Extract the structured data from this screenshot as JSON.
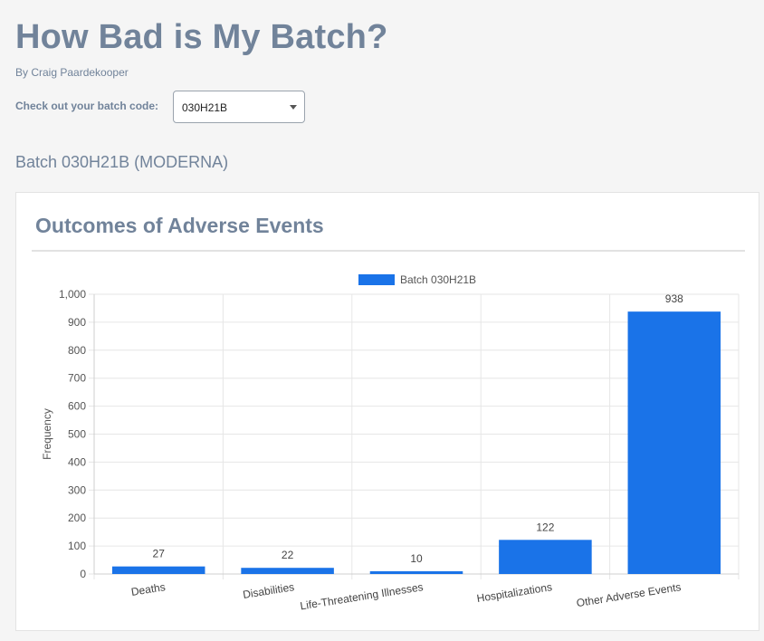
{
  "page": {
    "title": "How Bad is My Batch?",
    "byline": "By Craig Paardekooper",
    "batch_label": "Check out your batch code:",
    "batch_select": {
      "value": "030H21B"
    },
    "batch_heading": "Batch 030H21B (MODERNA)"
  },
  "card": {
    "title": "Outcomes of Adverse Events"
  },
  "chart_data": {
    "type": "bar",
    "title": "",
    "categories": [
      "Deaths",
      "Disabilities",
      "Life-Threatening Illnesses",
      "Hospitalizations",
      "Other Adverse Events"
    ],
    "series": [
      {
        "name": "Batch 030H21B",
        "values": [
          27,
          22,
          10,
          122,
          938
        ],
        "color": "#1a73e8"
      }
    ],
    "xlabel": "",
    "ylabel": "Frequency",
    "ylim": [
      0,
      1000
    ],
    "yticks": [
      0,
      100,
      200,
      300,
      400,
      500,
      600,
      700,
      800,
      900,
      1000
    ],
    "ytick_labels": [
      "0",
      "100",
      "200",
      "300",
      "400",
      "500",
      "600",
      "700",
      "800",
      "900",
      "1,000"
    ],
    "data_labels": true,
    "grid": true,
    "legend": "top-center"
  },
  "colors": {
    "text": "#71839a",
    "bar": "#1a73e8",
    "grid": "#e6e6e6"
  }
}
